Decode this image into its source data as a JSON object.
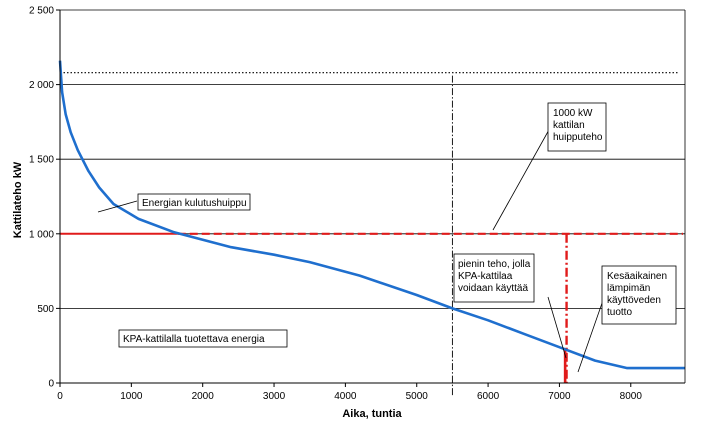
{
  "chart_data": {
    "type": "line",
    "xlabel": "Aika, tuntia",
    "ylabel": "Kattilateho kW",
    "xlim": [
      0,
      8760
    ],
    "ylim": [
      0,
      2500
    ],
    "x_ticks": [
      0,
      1000,
      2000,
      3000,
      4000,
      5000,
      6000,
      7000,
      8000
    ],
    "x_tick_labels": [
      "0",
      "1000",
      "2000",
      "3000",
      "4000",
      "5000",
      "6000",
      "7000",
      "8000"
    ],
    "y_ticks": [
      0,
      500,
      1000,
      1500,
      2000,
      2500
    ],
    "y_tick_labels": [
      "0",
      "500",
      "1 000",
      "1 500",
      "2 000",
      "2 500"
    ],
    "grid": "horizontal",
    "series": [
      {
        "color": "#1f6fce",
        "x": [
          0,
          30,
          80,
          150,
          250,
          400,
          550,
          750,
          1100,
          1600,
          2000,
          2400,
          3000,
          3500,
          4200,
          5000,
          5500,
          6000,
          6500,
          7000,
          7500,
          7950,
          8760
        ],
        "y": [
          2160,
          1950,
          1800,
          1680,
          1560,
          1420,
          1310,
          1200,
          1100,
          1010,
          960,
          910,
          860,
          810,
          720,
          590,
          500,
          420,
          330,
          240,
          150,
          100,
          100
        ]
      }
    ],
    "reference_lines": {
      "peak_demand_dotted_y": 2080,
      "boiler_peak_dashed_y": 1000,
      "vertical_dashdot_x": 5500,
      "red_dashdot_x": 7100,
      "red_solid_x": 7080,
      "red_solid_top_y": 235
    },
    "annotations": {
      "peak_demand": "Energian kulutushuippu",
      "kpa_energy": "KPA-kattilalla tuotettava energia",
      "boiler_peak": [
        "1000 kW",
        "kattilan",
        "huipputeho"
      ],
      "min_power": [
        "pienin teho, jolla",
        "KPA-kattilaa",
        "voidaan käyttää"
      ],
      "summer": [
        "Kesäaikainen",
        "lämpimän",
        "käyttöveden",
        "tuotto"
      ]
    },
    "colors": {
      "curve": "#1f6fce",
      "boiler": "#e01b1b",
      "grid": "#000000"
    }
  }
}
